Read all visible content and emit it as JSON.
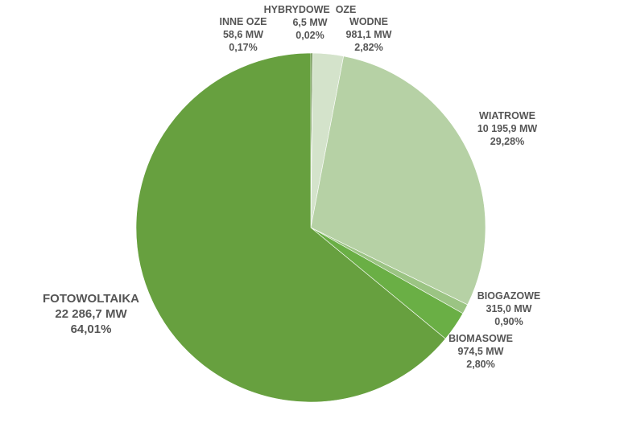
{
  "chart_data": {
    "type": "pie",
    "title": "",
    "slices": [
      {
        "name": "INNE OZE",
        "value_mw": 58.6,
        "value_text": "58,6 MW",
        "percent": 0.17,
        "percent_text": "0,17%",
        "color": "#4f7f2c"
      },
      {
        "name": "HYBRYDOWE  OZE",
        "value_mw": 6.5,
        "value_text": "6,5 MW",
        "percent": 0.02,
        "percent_text": "0,02%",
        "color": "#a9c795"
      },
      {
        "name": "WODNE",
        "value_mw": 981.1,
        "value_text": "981,1 MW",
        "percent": 2.82,
        "percent_text": "2,82%",
        "color": "#d4e3cb"
      },
      {
        "name": "WIATROWE",
        "value_mw": 10195.9,
        "value_text": "10 195,9 MW",
        "percent": 29.28,
        "percent_text": "29,28%",
        "color": "#b6d1a5"
      },
      {
        "name": "BIOGAZOWE",
        "value_mw": 315.0,
        "value_text": "315,0 MW",
        "percent": 0.9,
        "percent_text": "0,90%",
        "color": "#9bc483"
      },
      {
        "name": "BIOMASOWE",
        "value_mw": 974.5,
        "value_text": "974,5 MW",
        "percent": 2.8,
        "percent_text": "2,80%",
        "color": "#6aaf45"
      },
      {
        "name": "FOTOWOLTAIKA",
        "value_mw": 22286.7,
        "value_text": "22 286,7 MW",
        "percent": 64.01,
        "percent_text": "64,01%",
        "color": "#67a03f"
      }
    ]
  }
}
